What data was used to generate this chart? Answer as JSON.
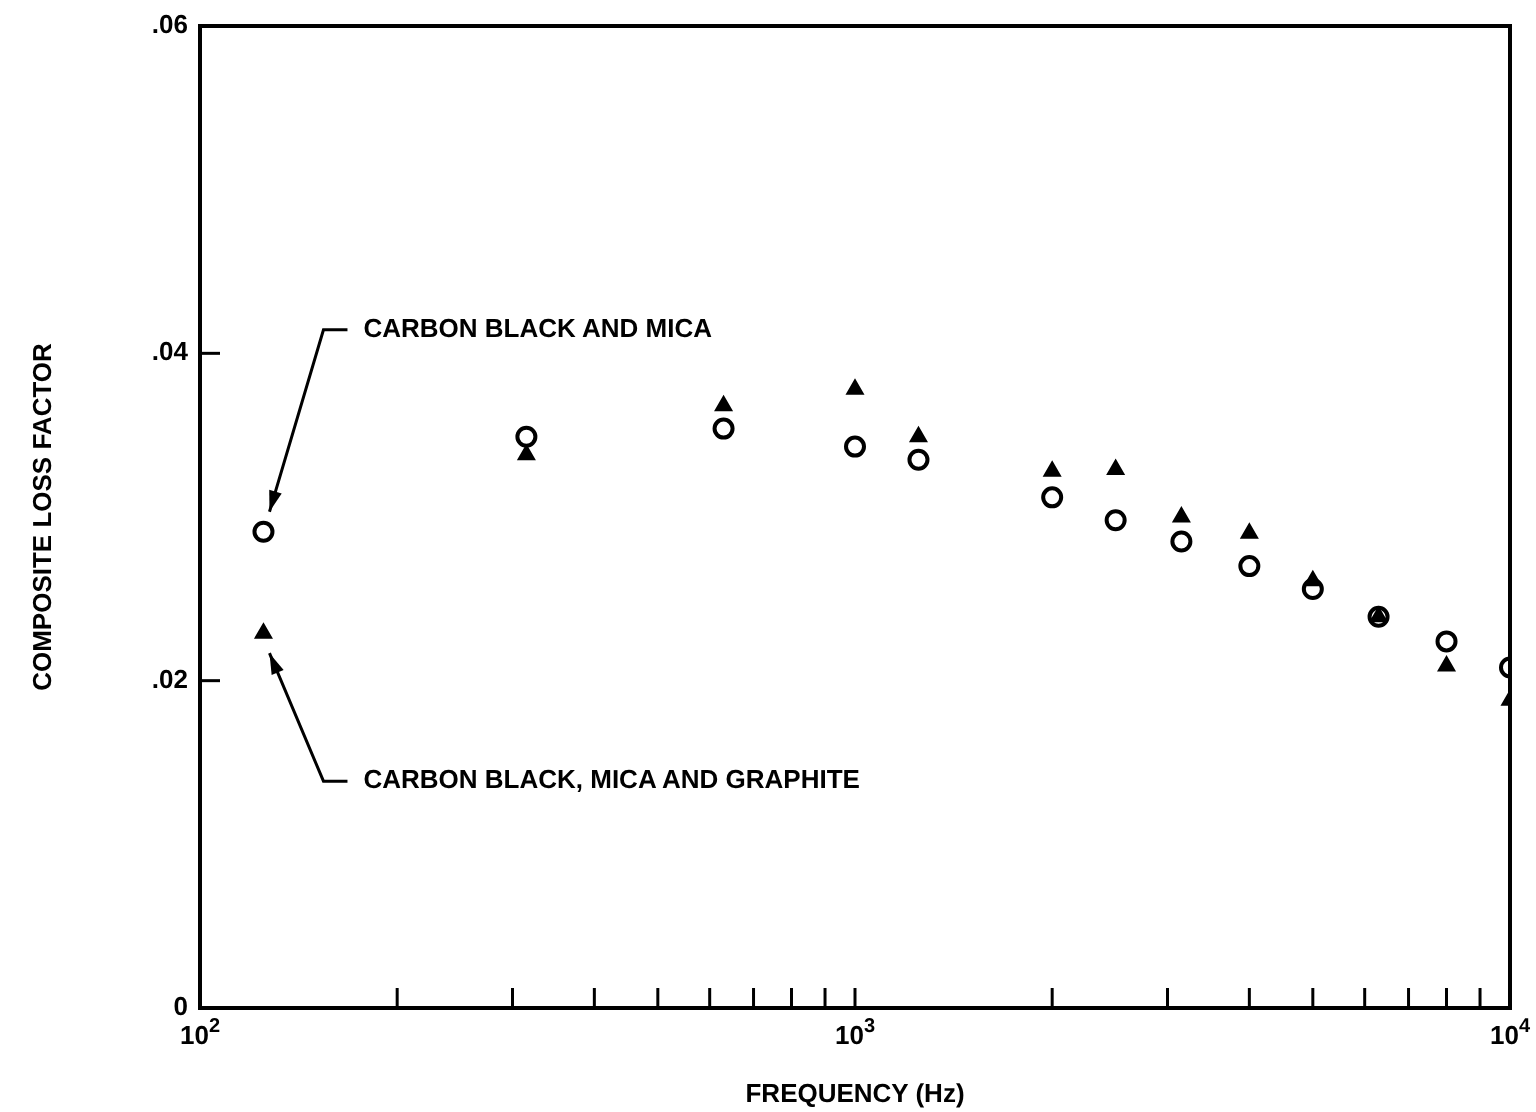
{
  "chart_data": {
    "type": "scatter",
    "xlabel": "FREQUENCY (Hz)",
    "ylabel": "COMPOSITE LOSS FACTOR",
    "log": "x",
    "x": [
      125,
      315,
      630,
      1000,
      1250,
      2000,
      2500,
      3150,
      4000,
      5000,
      6300,
      8000,
      10000
    ],
    "series": [
      {
        "name": "CARBON BLACK AND MICA",
        "color": "#000000",
        "marker": "circle",
        "values": [
          0.0291,
          0.0349,
          0.0354,
          0.0343,
          0.0335,
          0.0312,
          0.0298,
          0.0285,
          0.027,
          0.0256,
          0.0239,
          0.0224,
          0.0208
        ]
      },
      {
        "name": "CARBON BLACK, MICA AND GRAPHITE",
        "color": "#000000",
        "marker": "triangle",
        "values": [
          0.0229,
          0.0338,
          0.0368,
          0.0378,
          0.0349,
          0.0328,
          0.0329,
          0.03,
          0.029,
          0.0261,
          0.0239,
          0.0209,
          0.0188
        ]
      }
    ],
    "xlim": [
      100,
      10000
    ],
    "xticks": [
      {
        "value": 100,
        "label": "10$^{2}$"
      },
      {
        "value": 200,
        "label": null
      },
      {
        "value": 300,
        "label": null
      },
      {
        "value": 400,
        "label": null
      },
      {
        "value": 500,
        "label": null
      },
      {
        "value": 600,
        "label": null
      },
      {
        "value": 700,
        "label": null
      },
      {
        "value": 800,
        "label": null
      },
      {
        "value": 900,
        "label": null
      },
      {
        "value": 1000,
        "label": "10$^{3}$"
      },
      {
        "value": 2000,
        "label": null
      },
      {
        "value": 3000,
        "label": null
      },
      {
        "value": 4000,
        "label": null
      },
      {
        "value": 5000,
        "label": null
      },
      {
        "value": 6000,
        "label": null
      },
      {
        "value": 7000,
        "label": null
      },
      {
        "value": 8000,
        "label": null
      },
      {
        "value": 9000,
        "label": null
      },
      {
        "value": 10000,
        "label": "10$^{4}$"
      }
    ],
    "ylim": [
      0,
      0.06
    ],
    "yticks": [
      {
        "value": 0,
        "label": "0"
      },
      {
        "value": 0.02,
        "label": ".02"
      },
      {
        "value": 0.04,
        "label": ".04"
      },
      {
        "value": 0.06,
        "label": ".06"
      }
    ],
    "grid": false,
    "legend": false
  }
}
